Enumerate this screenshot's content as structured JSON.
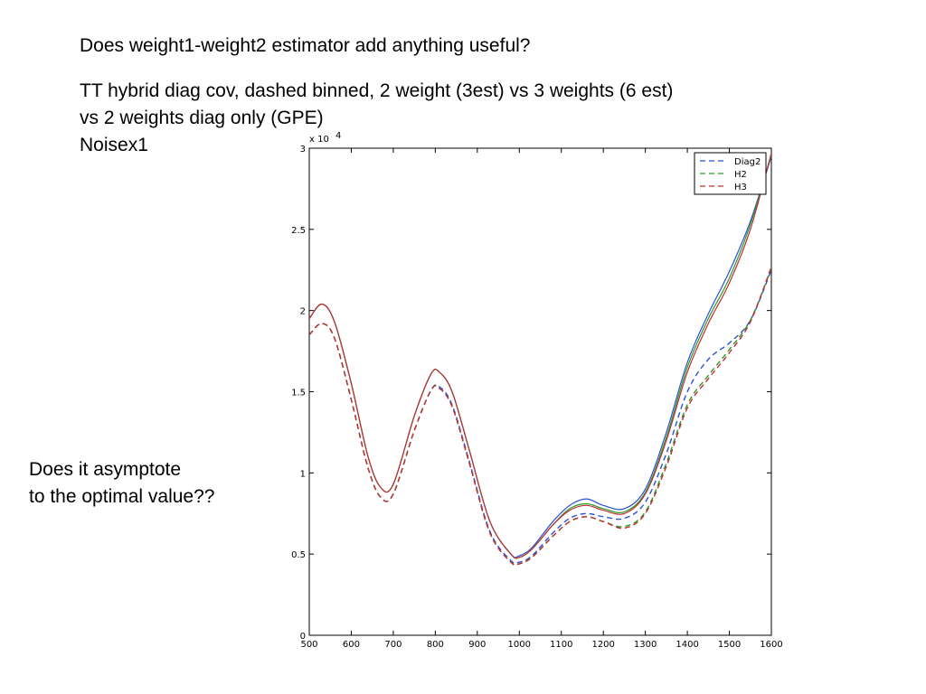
{
  "slide": {
    "question": "Does weight1-weight2 estimator add anything useful?",
    "description_lines": [
      "TT hybrid diag cov, dashed binned, 2 weight (3est) vs 3 weights (6 est)",
      "vs 2 weights diag only (GPE)",
      "Noisex1"
    ],
    "side_note_lines": [
      "Does it asymptote",
      "to the optimal value??"
    ]
  },
  "chart_data": {
    "type": "line",
    "xlim": [
      500,
      1600
    ],
    "ylim": [
      0,
      30000
    ],
    "y_multiplier_label": "x 10",
    "y_multiplier_exponent": "4",
    "x_ticks": [
      500,
      600,
      700,
      800,
      900,
      1000,
      1100,
      1200,
      1300,
      1400,
      1500,
      1600
    ],
    "y_ticks": [
      0,
      5000,
      10000,
      15000,
      20000,
      25000,
      30000
    ],
    "y_tick_labels": [
      "0",
      "0.5",
      "1",
      "1.5",
      "2",
      "2.5",
      "3"
    ],
    "legend_position": "top-right",
    "grid": false,
    "x": [
      500,
      530,
      560,
      600,
      640,
      670,
      700,
      750,
      790,
      810,
      840,
      880,
      930,
      980,
      1000,
      1030,
      1080,
      1120,
      1160,
      1200,
      1250,
      1300,
      1350,
      1400,
      1450,
      1500,
      1550,
      1600
    ],
    "series": [
      {
        "name": "Diag2",
        "color": "#2a50d8",
        "dash": "solid",
        "values": [
          19500,
          20400,
          19300,
          15500,
          11000,
          9100,
          9300,
          13500,
          16100,
          16200,
          15000,
          11500,
          7000,
          5000,
          4900,
          5400,
          7000,
          8000,
          8400,
          8000,
          7800,
          9000,
          12500,
          16800,
          19800,
          22400,
          25500,
          29500
        ]
      },
      {
        "name": "H2",
        "color": "#2a9a2a",
        "dash": "solid",
        "values": [
          19500,
          20400,
          19300,
          15500,
          11000,
          9100,
          9300,
          13500,
          16100,
          16200,
          15000,
          11500,
          7000,
          5000,
          4800,
          5300,
          6800,
          7800,
          8100,
          7800,
          7600,
          8800,
          12200,
          16500,
          19500,
          22000,
          25300,
          29600
        ]
      },
      {
        "name": "H3",
        "color": "#c03030",
        "dash": "solid",
        "values": [
          19500,
          20400,
          19300,
          15500,
          11000,
          9100,
          9300,
          13500,
          16100,
          16200,
          15000,
          11500,
          7000,
          5000,
          4800,
          5300,
          6800,
          7700,
          8000,
          7700,
          7500,
          8700,
          12000,
          16200,
          19200,
          21700,
          25000,
          29700
        ]
      },
      {
        "name": "Diag2",
        "color": "#2a50d8",
        "dash": "dashed",
        "values": [
          18500,
          19200,
          18300,
          14500,
          10300,
          8500,
          8700,
          12600,
          15100,
          15300,
          14200,
          10800,
          6400,
          4600,
          4500,
          4900,
          6300,
          7200,
          7500,
          7300,
          7200,
          8200,
          11200,
          15000,
          17000,
          18000,
          19400,
          22500
        ]
      },
      {
        "name": "H2",
        "color": "#2a9a2a",
        "dash": "dashed",
        "values": [
          18500,
          19200,
          18300,
          14500,
          10300,
          8500,
          8700,
          12600,
          15100,
          15200,
          14100,
          10700,
          6300,
          4500,
          4400,
          4800,
          6100,
          7000,
          7300,
          7000,
          6700,
          7600,
          10600,
          14200,
          16000,
          17600,
          19400,
          22600
        ]
      },
      {
        "name": "H3",
        "color": "#c03030",
        "dash": "dashed",
        "values": [
          18500,
          19200,
          18300,
          14500,
          10300,
          8500,
          8700,
          12600,
          15100,
          15200,
          14100,
          10700,
          6300,
          4500,
          4400,
          4800,
          6100,
          7000,
          7300,
          7000,
          6600,
          7500,
          10400,
          14000,
          15800,
          17400,
          19300,
          22700
        ]
      }
    ],
    "legend": [
      {
        "label": "Diag2",
        "color": "#2a50d8"
      },
      {
        "label": "H2",
        "color": "#2a9a2a"
      },
      {
        "label": "H3",
        "color": "#c03030"
      }
    ]
  }
}
